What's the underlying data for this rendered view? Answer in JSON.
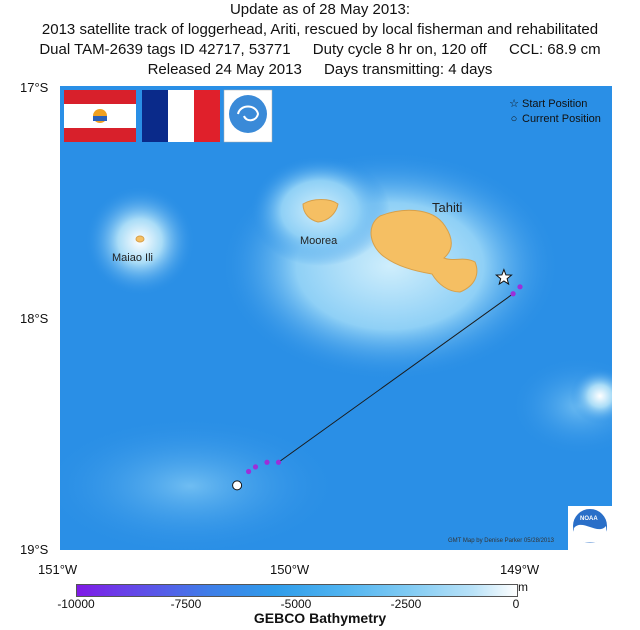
{
  "title": {
    "line1": "Update as of 28 May 2013:",
    "line2": "2013 satellite track of loggerhead, Ariti, rescued by local fisherman and rehabilitated",
    "line3a": "Dual TAM-2639 tags ID 42717, 53771",
    "line3b": "Duty cycle 8 hr on, 120 off",
    "line3c": "CCL: 68.9 cm",
    "line4a": "Released 24 May 2013",
    "line4b": "Days transmitting: 4 days"
  },
  "axes": {
    "lat_labels": [
      "17°S",
      "18°S",
      "19°S"
    ],
    "lon_labels": [
      "151°W",
      "150°W",
      "149°W"
    ]
  },
  "legend": {
    "start": "Start Position",
    "current": "Current Position"
  },
  "islands": {
    "tahiti": "Tahiti",
    "moorea": "Moorea",
    "maiao": "Maiao Ili"
  },
  "credit": "GMT Map by Denise Parker 05/28/2013",
  "logos": {
    "agency_badge": "NOAA"
  },
  "colorbar": {
    "ticks": [
      "-10000",
      "-7500",
      "-5000",
      "-2500",
      "0"
    ],
    "unit": "m",
    "title": "GEBCO Bathymetry"
  },
  "track": {
    "start": {
      "lon": -149.17,
      "lat": -17.8
    },
    "current": {
      "lon": -150.33,
      "lat": -18.7
    },
    "points": [
      {
        "lon": -149.17,
        "lat": -17.8
      },
      {
        "lon": -149.1,
        "lat": -17.84
      },
      {
        "lon": -149.13,
        "lat": -17.87
      },
      {
        "lon": -150.15,
        "lat": -18.6
      },
      {
        "lon": -150.2,
        "lat": -18.6
      },
      {
        "lon": -150.25,
        "lat": -18.62
      },
      {
        "lon": -150.28,
        "lat": -18.64
      },
      {
        "lon": -150.33,
        "lat": -18.7
      }
    ]
  },
  "colors": {
    "ocean_deep": "#2a8fe6",
    "ocean_shallow": "#bfe6fa",
    "land": "#f5bf63",
    "track_points": "#9b30d9"
  }
}
